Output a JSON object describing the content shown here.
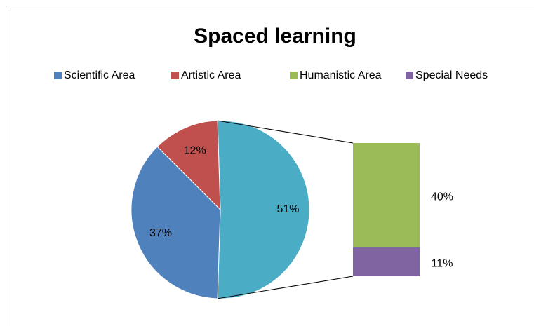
{
  "chart_data": {
    "type": "bar-of-pie",
    "title": "Spaced learning",
    "categories": [
      "Scientific Area",
      "Artistic Area",
      "Humanistic Area",
      "Special Needs"
    ],
    "values": [
      37,
      12,
      40,
      11
    ],
    "value_labels": [
      "37%",
      "12%",
      "40%",
      "11%"
    ],
    "colors": [
      "#4f81bd",
      "#c0504d",
      "#9bbb59",
      "#8064a2"
    ],
    "pie": [
      0,
      1
    ],
    "bar": [
      2,
      3
    ],
    "combined_value": 51,
    "combined_label": "51%",
    "combined_color": "#4bacc6",
    "legend": "top"
  }
}
